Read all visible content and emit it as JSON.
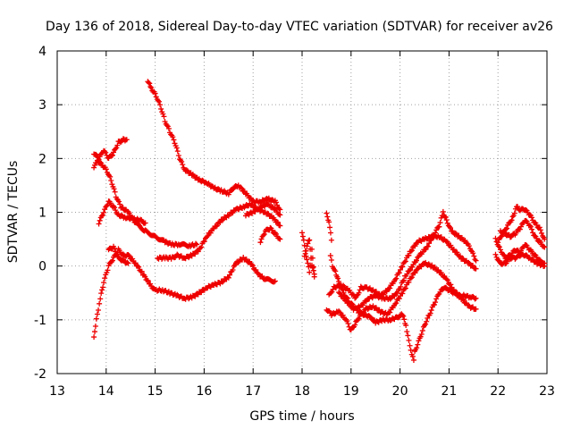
{
  "chart_data": {
    "type": "scatter",
    "title": "Day 136 of 2018, Sidereal Day-to-day VTEC variation (SDTVAR) for receiver av26",
    "xlabel": "GPS time / hours",
    "ylabel": "SDTVAR / TECUs",
    "xlim": [
      13,
      23
    ],
    "ylim": [
      -2,
      4
    ],
    "xticks": [
      13,
      14,
      15,
      16,
      17,
      18,
      19,
      20,
      21,
      22,
      23
    ],
    "yticks": [
      -2,
      -1,
      0,
      1,
      2,
      3,
      4
    ],
    "grid": true,
    "marker": "+",
    "color": "#ee0000",
    "traces": [
      {
        "name": "trace-1",
        "points": [
          [
            13.75,
            1.85
          ],
          [
            13.82,
            1.95
          ],
          [
            13.9,
            1.9
          ],
          [
            14.0,
            1.8
          ],
          [
            14.1,
            1.6
          ],
          [
            14.2,
            1.3
          ],
          [
            14.3,
            1.1
          ],
          [
            14.45,
            1.0
          ],
          [
            14.6,
            0.8
          ],
          [
            14.8,
            0.65
          ],
          [
            15.0,
            0.55
          ],
          [
            15.2,
            0.45
          ],
          [
            15.35,
            0.4
          ],
          [
            15.5,
            0.4
          ],
          [
            15.7,
            0.38
          ],
          [
            15.85,
            0.4
          ]
        ]
      },
      {
        "name": "trace-2",
        "points": [
          [
            13.75,
            2.1
          ],
          [
            13.85,
            2.0
          ],
          [
            13.95,
            2.15
          ],
          [
            14.05,
            2.0
          ],
          [
            14.15,
            2.1
          ],
          [
            14.25,
            2.3
          ],
          [
            14.35,
            2.35
          ],
          [
            14.42,
            2.35
          ]
        ]
      },
      {
        "name": "trace-3",
        "points": [
          [
            13.85,
            0.8
          ],
          [
            13.95,
            1.0
          ],
          [
            14.05,
            1.2
          ],
          [
            14.15,
            1.1
          ],
          [
            14.25,
            0.95
          ],
          [
            14.4,
            0.9
          ],
          [
            14.55,
            0.88
          ],
          [
            14.7,
            0.85
          ],
          [
            14.8,
            0.8
          ]
        ]
      },
      {
        "name": "trace-4",
        "points": [
          [
            13.75,
            -1.3
          ],
          [
            13.8,
            -1.0
          ],
          [
            13.88,
            -0.6
          ],
          [
            13.95,
            -0.3
          ],
          [
            14.05,
            0.0
          ],
          [
            14.15,
            0.15
          ],
          [
            14.25,
            0.3
          ],
          [
            14.35,
            0.2
          ],
          [
            14.45,
            0.2
          ],
          [
            14.6,
            0.05
          ],
          [
            14.75,
            -0.15
          ],
          [
            14.9,
            -0.35
          ],
          [
            15.0,
            -0.45
          ],
          [
            15.15,
            -0.45
          ],
          [
            15.3,
            -0.5
          ],
          [
            15.45,
            -0.55
          ],
          [
            15.6,
            -0.6
          ],
          [
            15.75,
            -0.58
          ],
          [
            15.9,
            -0.5
          ],
          [
            16.05,
            -0.4
          ],
          [
            16.2,
            -0.35
          ],
          [
            16.35,
            -0.3
          ],
          [
            16.5,
            -0.2
          ],
          [
            16.65,
            0.05
          ],
          [
            16.8,
            0.15
          ],
          [
            16.95,
            0.05
          ],
          [
            17.1,
            -0.15
          ],
          [
            17.25,
            -0.25
          ],
          [
            17.45,
            -0.28
          ]
        ]
      },
      {
        "name": "trace-5",
        "points": [
          [
            14.05,
            0.3
          ],
          [
            14.15,
            0.35
          ],
          [
            14.25,
            0.15
          ],
          [
            14.35,
            0.1
          ],
          [
            14.45,
            0.05
          ]
        ]
      },
      {
        "name": "trace-6",
        "points": [
          [
            14.85,
            3.45
          ],
          [
            14.92,
            3.3
          ],
          [
            15.0,
            3.2
          ],
          [
            15.1,
            3.0
          ],
          [
            15.2,
            2.7
          ],
          [
            15.3,
            2.5
          ],
          [
            15.4,
            2.3
          ],
          [
            15.5,
            2.0
          ],
          [
            15.6,
            1.8
          ],
          [
            15.75,
            1.7
          ],
          [
            15.9,
            1.6
          ],
          [
            16.05,
            1.55
          ],
          [
            16.2,
            1.45
          ],
          [
            16.35,
            1.4
          ],
          [
            16.5,
            1.35
          ],
          [
            16.6,
            1.45
          ],
          [
            16.7,
            1.5
          ],
          [
            16.85,
            1.35
          ],
          [
            17.0,
            1.2
          ],
          [
            17.15,
            1.2
          ],
          [
            17.3,
            1.25
          ],
          [
            17.45,
            1.2
          ],
          [
            17.55,
            1.05
          ]
        ]
      },
      {
        "name": "trace-7",
        "points": [
          [
            15.05,
            0.15
          ],
          [
            15.2,
            0.15
          ],
          [
            15.35,
            0.15
          ],
          [
            15.45,
            0.2
          ],
          [
            15.6,
            0.15
          ],
          [
            15.75,
            0.2
          ],
          [
            15.9,
            0.3
          ],
          [
            16.05,
            0.55
          ],
          [
            16.2,
            0.7
          ],
          [
            16.35,
            0.85
          ],
          [
            16.5,
            0.95
          ],
          [
            16.65,
            1.05
          ],
          [
            16.8,
            1.1
          ],
          [
            16.95,
            1.15
          ],
          [
            17.1,
            1.05
          ],
          [
            17.25,
            1.0
          ],
          [
            17.4,
            0.9
          ],
          [
            17.55,
            0.75
          ]
        ]
      },
      {
        "name": "trace-8",
        "points": [
          [
            16.85,
            0.95
          ],
          [
            17.0,
            1.0
          ],
          [
            17.15,
            1.1
          ],
          [
            17.3,
            1.15
          ],
          [
            17.45,
            1.05
          ],
          [
            17.55,
            0.95
          ]
        ]
      },
      {
        "name": "trace-9",
        "points": [
          [
            17.15,
            0.45
          ],
          [
            17.25,
            0.65
          ],
          [
            17.35,
            0.7
          ],
          [
            17.45,
            0.6
          ],
          [
            17.55,
            0.5
          ]
        ]
      },
      {
        "name": "trace-10",
        "points": [
          [
            18.0,
            0.6
          ],
          [
            18.05,
            0.4
          ],
          [
            18.1,
            0.1
          ],
          [
            18.15,
            -0.1
          ],
          [
            18.2,
            0.3
          ],
          [
            18.25,
            -0.2
          ]
        ]
      },
      {
        "name": "trace-11",
        "points": [
          [
            18.05,
            0.2
          ],
          [
            18.1,
            0.35
          ],
          [
            18.15,
            0.5
          ],
          [
            18.2,
            0.0
          ],
          [
            18.25,
            -0.15
          ]
        ]
      },
      {
        "name": "trace-12",
        "points": [
          [
            18.5,
            1.0
          ],
          [
            18.55,
            0.8
          ],
          [
            18.6,
            0.5
          ],
          [
            18.58,
            0.2
          ],
          [
            18.62,
            0.0
          ],
          [
            18.68,
            -0.1
          ],
          [
            18.75,
            -0.3
          ],
          [
            18.85,
            -0.5
          ],
          [
            18.95,
            -0.65
          ],
          [
            19.05,
            -0.75
          ],
          [
            19.15,
            -0.85
          ],
          [
            19.25,
            -0.9
          ],
          [
            19.4,
            -0.95
          ],
          [
            19.5,
            -1.05
          ],
          [
            19.65,
            -1.0
          ],
          [
            19.8,
            -1.0
          ],
          [
            19.95,
            -0.95
          ],
          [
            20.05,
            -0.9
          ],
          [
            20.12,
            -1.1
          ],
          [
            20.2,
            -1.5
          ],
          [
            20.28,
            -1.75
          ]
        ]
      },
      {
        "name": "trace-13",
        "points": [
          [
            18.5,
            -0.8
          ],
          [
            18.6,
            -0.9
          ],
          [
            18.75,
            -0.85
          ],
          [
            18.9,
            -1.0
          ],
          [
            19.0,
            -1.2
          ],
          [
            19.1,
            -1.05
          ],
          [
            19.2,
            -0.9
          ],
          [
            19.3,
            -0.8
          ],
          [
            19.45,
            -0.75
          ],
          [
            19.6,
            -0.85
          ],
          [
            19.75,
            -0.9
          ],
          [
            19.9,
            -0.7
          ],
          [
            20.05,
            -0.5
          ],
          [
            20.2,
            -0.25
          ],
          [
            20.35,
            -0.05
          ],
          [
            20.5,
            0.05
          ],
          [
            20.65,
            0.0
          ],
          [
            20.8,
            -0.1
          ],
          [
            20.95,
            -0.25
          ],
          [
            21.1,
            -0.45
          ],
          [
            21.25,
            -0.6
          ],
          [
            21.4,
            -0.75
          ],
          [
            21.55,
            -0.8
          ]
        ]
      },
      {
        "name": "trace-14",
        "points": [
          [
            18.55,
            -0.55
          ],
          [
            18.65,
            -0.4
          ],
          [
            18.8,
            -0.35
          ],
          [
            18.95,
            -0.45
          ],
          [
            19.1,
            -0.6
          ],
          [
            19.2,
            -0.4
          ],
          [
            19.3,
            -0.4
          ],
          [
            19.45,
            -0.45
          ],
          [
            19.6,
            -0.55
          ],
          [
            19.75,
            -0.45
          ],
          [
            19.9,
            -0.25
          ],
          [
            20.05,
            0.0
          ],
          [
            20.2,
            0.25
          ],
          [
            20.35,
            0.45
          ],
          [
            20.5,
            0.5
          ],
          [
            20.65,
            0.55
          ],
          [
            20.8,
            0.55
          ],
          [
            20.95,
            0.45
          ],
          [
            21.1,
            0.3
          ],
          [
            21.25,
            0.15
          ],
          [
            21.4,
            0.05
          ],
          [
            21.55,
            -0.05
          ]
        ]
      },
      {
        "name": "trace-15",
        "points": [
          [
            18.75,
            -0.5
          ],
          [
            18.9,
            -0.65
          ],
          [
            19.05,
            -0.8
          ],
          [
            19.2,
            -0.75
          ],
          [
            19.35,
            -0.6
          ],
          [
            19.5,
            -0.55
          ],
          [
            19.65,
            -0.6
          ],
          [
            19.8,
            -0.6
          ],
          [
            19.95,
            -0.5
          ],
          [
            20.1,
            -0.2
          ],
          [
            20.25,
            0.0
          ],
          [
            20.4,
            0.2
          ],
          [
            20.55,
            0.35
          ],
          [
            20.7,
            0.6
          ],
          [
            20.8,
            0.75
          ],
          [
            20.88,
            1.0
          ],
          [
            20.95,
            0.85
          ],
          [
            21.05,
            0.65
          ],
          [
            21.2,
            0.55
          ],
          [
            21.35,
            0.45
          ],
          [
            21.45,
            0.3
          ],
          [
            21.55,
            0.1
          ]
        ]
      },
      {
        "name": "trace-16",
        "points": [
          [
            20.3,
            -1.6
          ],
          [
            20.4,
            -1.35
          ],
          [
            20.5,
            -1.1
          ],
          [
            20.6,
            -0.9
          ],
          [
            20.7,
            -0.7
          ],
          [
            20.8,
            -0.5
          ],
          [
            20.9,
            -0.4
          ],
          [
            21.0,
            -0.45
          ],
          [
            21.1,
            -0.5
          ],
          [
            21.2,
            -0.55
          ],
          [
            21.3,
            -0.55
          ],
          [
            21.45,
            -0.58
          ],
          [
            21.55,
            -0.6
          ]
        ]
      },
      {
        "name": "trace-17",
        "points": [
          [
            21.95,
            0.5
          ],
          [
            22.05,
            0.3
          ],
          [
            22.15,
            0.15
          ],
          [
            22.25,
            0.2
          ],
          [
            22.35,
            0.3
          ],
          [
            22.45,
            0.25
          ],
          [
            22.55,
            0.4
          ],
          [
            22.65,
            0.3
          ],
          [
            22.75,
            0.2
          ],
          [
            22.85,
            0.1
          ],
          [
            22.95,
            0.05
          ]
        ]
      },
      {
        "name": "trace-18",
        "points": [
          [
            21.95,
            0.2
          ],
          [
            22.05,
            0.05
          ],
          [
            22.15,
            0.05
          ],
          [
            22.25,
            0.15
          ],
          [
            22.35,
            0.15
          ],
          [
            22.45,
            0.2
          ],
          [
            22.55,
            0.2
          ],
          [
            22.65,
            0.15
          ],
          [
            22.8,
            0.05
          ],
          [
            22.95,
            0.0
          ]
        ]
      },
      {
        "name": "trace-19",
        "points": [
          [
            22.0,
            0.45
          ],
          [
            22.1,
            0.6
          ],
          [
            22.2,
            0.75
          ],
          [
            22.3,
            0.9
          ],
          [
            22.38,
            1.1
          ],
          [
            22.45,
            1.05
          ],
          [
            22.55,
            1.05
          ],
          [
            22.65,
            0.95
          ],
          [
            22.75,
            0.8
          ],
          [
            22.85,
            0.7
          ],
          [
            22.95,
            0.5
          ]
        ]
      },
      {
        "name": "trace-20",
        "points": [
          [
            22.05,
            0.65
          ],
          [
            22.15,
            0.6
          ],
          [
            22.25,
            0.55
          ],
          [
            22.35,
            0.6
          ],
          [
            22.45,
            0.7
          ],
          [
            22.55,
            0.85
          ],
          [
            22.65,
            0.75
          ],
          [
            22.75,
            0.55
          ],
          [
            22.85,
            0.45
          ],
          [
            22.95,
            0.35
          ]
        ]
      }
    ]
  }
}
